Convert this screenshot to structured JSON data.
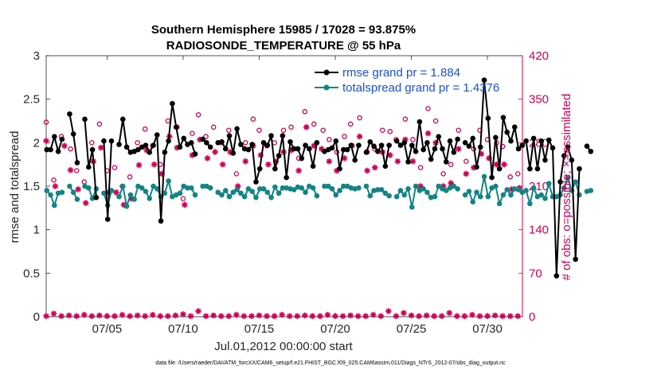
{
  "chart_data": {
    "type": "line",
    "title_line1": "Southern Hemisphere 15985 / 17028 = 93.875%",
    "title_line2": "RADIOSONDE_TEMPERATURE @ 55 hPa",
    "xlabel": "Jul.01,2012 00:00:00 start",
    "ylabel_left": "rmse and totalspread",
    "ylabel_right": "# of obs: o=possible; ×=assimilated",
    "footer": "data file: /Users/raeder/DAI/ATM_forcXX/CAM6_setup/f.e21.FHIST_BGC.f09_025.CAM6assim.011/Diags_NTrS_2012-07/obs_diag_output.nc",
    "xlim": [
      1,
      32.3
    ],
    "ylim_left": [
      0,
      3
    ],
    "ylim_right": [
      0,
      420
    ],
    "x_ticks": [
      {
        "day": 5,
        "label": "07/05"
      },
      {
        "day": 10,
        "label": "07/10"
      },
      {
        "day": 15,
        "label": "07/15"
      },
      {
        "day": 20,
        "label": "07/20"
      },
      {
        "day": 25,
        "label": "07/25"
      },
      {
        "day": 30,
        "label": "07/30"
      }
    ],
    "y_ticks_left": [
      "0",
      "0.5",
      "1",
      "1.5",
      "2",
      "2.5",
      "3"
    ],
    "y_ticks_right": [
      "0",
      "70",
      "140",
      "210",
      "280",
      "350",
      "420"
    ],
    "colors": {
      "rmse": "#000000",
      "spread": "#138484",
      "obs": "#cc0055",
      "legend_text": "#1a4fd6"
    },
    "series": [
      {
        "name": "rmse grand pr = 1.884",
        "key": "rmse",
        "values": [
          1.92,
          1.92,
          2.07,
          1.9,
          2.04,
          null,
          2.33,
          2.1,
          1.77,
          null,
          2.27,
          1.72,
          1.92,
          1.37,
          null,
          2.02,
          1.12,
          2.02,
          null,
          1.98,
          2.27,
          1.95,
          1.89,
          1.9,
          1.92,
          1.95,
          1.97,
          1.89,
          1.97,
          2.09,
          1.1,
          1.89,
          2.02,
          2.45,
          2.18,
          1.95,
          2.05,
          1.98,
          2.0,
          1.87,
          null,
          2.04,
          2.0,
          1.95,
          null,
          2.0,
          2.01,
          1.93,
          2.08,
          1.88,
          2.16,
          1.98,
          1.93,
          1.92,
          1.98,
          1.55,
          1.7,
          2.0,
          1.97,
          2.08,
          1.7,
          1.85,
          2.08,
          1.6,
          2.01,
          1.93,
          1.93,
          1.82,
          1.97,
          1.93,
          1.73,
          2.0,
          null,
          1.9,
          1.92,
          1.94,
          2.02,
          1.7,
          1.92,
          1.92,
          1.97,
          1.8,
          1.97,
          null,
          1.89,
          2.01,
          1.96,
          1.9,
          1.97,
          1.73,
          1.97,
          null,
          2.02,
          1.97,
          2.0,
          1.78,
          1.97,
          1.9,
          2.24,
          1.92,
          2.0,
          1.81,
          1.93,
          2.07,
          1.93,
          1.78,
          2.02,
          1.89,
          2.04,
          null,
          2.0,
          1.96,
          2.05,
          1.72,
          1.95,
          2.72,
          2.28,
          1.6,
          2.06,
          1.7,
          2.29,
          2.12,
          2.02,
          2.18,
          1.93,
          1.97,
          2.02,
          1.7,
          2.05,
          1.7,
          2.02,
          1.8,
          2.03,
          1.94,
          0.47,
          1.55,
          1.85,
          1.95,
          1.8,
          0.66,
          1.7,
          null,
          1.96,
          1.9
        ],
        "x_start": 1.04,
        "x_step": 0.25
      },
      {
        "name": "totalspread grand pr = 1.4376",
        "key": "spread",
        "values": [
          1.45,
          1.4,
          1.28,
          1.42,
          1.43,
          null,
          1.5,
          1.43,
          1.35,
          null,
          1.5,
          1.48,
          1.36,
          1.47,
          null,
          1.42,
          1.28,
          1.45,
          null,
          1.38,
          1.5,
          1.27,
          1.4,
          1.35,
          1.5,
          1.48,
          1.44,
          1.36,
          1.5,
          1.47,
          1.38,
          1.42,
          1.56,
          1.38,
          1.4,
          1.42,
          1.5,
          1.48,
          1.48,
          1.4,
          null,
          1.5,
          1.5,
          1.48,
          null,
          1.43,
          1.4,
          1.45,
          1.38,
          1.43,
          1.46,
          1.42,
          1.38,
          1.47,
          1.44,
          1.37,
          1.47,
          1.47,
          1.43,
          1.37,
          1.49,
          1.42,
          1.48,
          1.48,
          1.47,
          1.46,
          1.49,
          1.48,
          1.43,
          1.5,
          1.48,
          1.39,
          null,
          1.5,
          1.5,
          1.47,
          1.4,
          1.45,
          1.5,
          1.5,
          1.48,
          1.47,
          1.48,
          null,
          1.5,
          1.39,
          1.45,
          1.46,
          1.46,
          1.42,
          1.39,
          null,
          1.38,
          1.45,
          1.4,
          1.47,
          1.26,
          1.5,
          1.45,
          1.47,
          1.43,
          1.37,
          1.38,
          1.5,
          1.47,
          1.45,
          1.48,
          1.5,
          1.47,
          null,
          1.4,
          1.44,
          1.32,
          1.43,
          1.38,
          1.61,
          1.38,
          1.48,
          1.5,
          1.3,
          1.4,
          1.46,
          1.4,
          1.47,
          1.46,
          1.43,
          1.45,
          1.3,
          1.48,
          1.38,
          1.4,
          1.36,
          1.53,
          1.38,
          1.38,
          1.4,
          1.48,
          1.6,
          1.45,
          1.55,
          1.4,
          null,
          1.44,
          1.45
        ],
        "x_start": 1.04,
        "x_step": 0.25
      }
    ],
    "obs_possible": [
      [
        1.0,
        313
      ],
      [
        1.5,
        220
      ],
      [
        2.0,
        290
      ],
      [
        2.6,
        270
      ],
      [
        3.0,
        235
      ],
      [
        3.5,
        217
      ],
      [
        4.0,
        280
      ],
      [
        4.5,
        310
      ],
      [
        5.0,
        235
      ],
      [
        5.5,
        240
      ],
      [
        6.0,
        210
      ],
      [
        6.5,
        225
      ],
      [
        7.0,
        280
      ],
      [
        7.5,
        302
      ],
      [
        8.0,
        275
      ],
      [
        8.5,
        245
      ],
      [
        9.0,
        315
      ],
      [
        9.6,
        305
      ],
      [
        10.0,
        190
      ],
      [
        10.6,
        295
      ],
      [
        11.0,
        325
      ],
      [
        11.5,
        290
      ],
      [
        12.0,
        305
      ],
      [
        12.5,
        280
      ],
      [
        13.0,
        300
      ],
      [
        13.5,
        230
      ],
      [
        14.1,
        280
      ],
      [
        14.6,
        318
      ],
      [
        15.0,
        300
      ],
      [
        15.5,
        275
      ],
      [
        16.0,
        280
      ],
      [
        16.6,
        300
      ],
      [
        17.1,
        305
      ],
      [
        17.6,
        255
      ],
      [
        18.0,
        330
      ],
      [
        18.6,
        310
      ],
      [
        19.2,
        300
      ],
      [
        19.6,
        285
      ],
      [
        20.1,
        265
      ],
      [
        20.6,
        290
      ],
      [
        21.0,
        310
      ],
      [
        21.6,
        320
      ],
      [
        22.1,
        265
      ],
      [
        22.6,
        270
      ],
      [
        23.1,
        300
      ],
      [
        23.6,
        298
      ],
      [
        24.0,
        285
      ],
      [
        24.6,
        318
      ],
      [
        25.1,
        285
      ],
      [
        25.6,
        240
      ],
      [
        26.1,
        335
      ],
      [
        26.6,
        315
      ],
      [
        27.1,
        230
      ],
      [
        27.6,
        245
      ],
      [
        28.1,
        300
      ],
      [
        28.6,
        250
      ],
      [
        29.1,
        270
      ],
      [
        29.5,
        300
      ],
      [
        30.0,
        285
      ],
      [
        30.6,
        280
      ],
      [
        31.0,
        274
      ],
      [
        31.5,
        225
      ],
      [
        32.0,
        230
      ]
    ],
    "obs_assimilated": [
      [
        1.0,
        283
      ],
      [
        1.6,
        210
      ],
      [
        2.2,
        275
      ],
      [
        2.6,
        236
      ],
      [
        3.1,
        205
      ],
      [
        3.6,
        183
      ],
      [
        4.1,
        250
      ],
      [
        4.6,
        272
      ],
      [
        5.1,
        200
      ],
      [
        5.6,
        200
      ],
      [
        6.1,
        180
      ],
      [
        6.6,
        190
      ],
      [
        7.1,
        244
      ],
      [
        7.6,
        268
      ],
      [
        8.1,
        245
      ],
      [
        8.6,
        230
      ],
      [
        9.1,
        290
      ],
      [
        9.6,
        272
      ],
      [
        10.1,
        180
      ],
      [
        10.6,
        260
      ],
      [
        11.1,
        285
      ],
      [
        11.6,
        255
      ],
      [
        12.1,
        265
      ],
      [
        12.6,
        245
      ],
      [
        13.1,
        265
      ],
      [
        13.6,
        210
      ],
      [
        14.1,
        250
      ],
      [
        14.6,
        275
      ],
      [
        15.1,
        260
      ],
      [
        15.6,
        245
      ],
      [
        16.1,
        250
      ],
      [
        16.6,
        265
      ],
      [
        17.1,
        268
      ],
      [
        17.6,
        235
      ],
      [
        18.1,
        305
      ],
      [
        18.6,
        275
      ],
      [
        19.1,
        270
      ],
      [
        19.6,
        250
      ],
      [
        20.1,
        235
      ],
      [
        20.6,
        255
      ],
      [
        21.1,
        275
      ],
      [
        21.6,
        290
      ],
      [
        22.1,
        235
      ],
      [
        22.6,
        240
      ],
      [
        23.1,
        265
      ],
      [
        23.6,
        260
      ],
      [
        24.1,
        250
      ],
      [
        24.6,
        285
      ],
      [
        25.1,
        250
      ],
      [
        25.6,
        210
      ],
      [
        26.1,
        295
      ],
      [
        26.6,
        280
      ],
      [
        27.1,
        210
      ],
      [
        27.6,
        215
      ],
      [
        28.1,
        270
      ],
      [
        28.6,
        230
      ],
      [
        29.1,
        240
      ],
      [
        29.6,
        262
      ],
      [
        30.1,
        255
      ],
      [
        30.6,
        245
      ],
      [
        31.1,
        245
      ],
      [
        31.6,
        205
      ],
      [
        32.1,
        207
      ]
    ],
    "obs_bottom_assim": [
      [
        1.0,
        1
      ],
      [
        1.5,
        5
      ],
      [
        2.0,
        1
      ],
      [
        2.5,
        2
      ],
      [
        3.0,
        1
      ],
      [
        3.5,
        3
      ],
      [
        4.0,
        1
      ],
      [
        4.5,
        2
      ],
      [
        5.0,
        1
      ],
      [
        5.5,
        1
      ],
      [
        6.0,
        3
      ],
      [
        6.5,
        1
      ],
      [
        7.0,
        2
      ],
      [
        7.5,
        1
      ],
      [
        8.0,
        3
      ],
      [
        8.5,
        1
      ],
      [
        9.0,
        1
      ],
      [
        9.5,
        2
      ],
      [
        10.0,
        4
      ],
      [
        10.5,
        1
      ],
      [
        11.0,
        9
      ],
      [
        11.5,
        1
      ],
      [
        12.0,
        2
      ],
      [
        12.5,
        1
      ],
      [
        13.0,
        1
      ],
      [
        13.5,
        3
      ],
      [
        14.0,
        1
      ],
      [
        14.5,
        1
      ],
      [
        15.0,
        2
      ],
      [
        15.5,
        1
      ],
      [
        16.0,
        1
      ],
      [
        16.5,
        3
      ],
      [
        17.0,
        1
      ],
      [
        17.5,
        1
      ],
      [
        18.0,
        2
      ],
      [
        18.5,
        1
      ],
      [
        19.0,
        1
      ],
      [
        19.5,
        3
      ],
      [
        20.0,
        1
      ],
      [
        20.5,
        1
      ],
      [
        21.0,
        2
      ],
      [
        21.5,
        1
      ],
      [
        22.0,
        1
      ],
      [
        22.5,
        3
      ],
      [
        23.0,
        1
      ],
      [
        23.5,
        9
      ],
      [
        24.0,
        1
      ],
      [
        24.5,
        6
      ],
      [
        25.0,
        2
      ],
      [
        25.5,
        1
      ],
      [
        26.0,
        2
      ],
      [
        26.5,
        1
      ],
      [
        27.0,
        1
      ],
      [
        27.5,
        6
      ],
      [
        28.0,
        1
      ],
      [
        28.5,
        1
      ],
      [
        29.0,
        3
      ],
      [
        29.5,
        1
      ],
      [
        30.0,
        1
      ],
      [
        30.5,
        2
      ],
      [
        31.0,
        1
      ],
      [
        31.5,
        1
      ],
      [
        32.0,
        1
      ]
    ]
  }
}
